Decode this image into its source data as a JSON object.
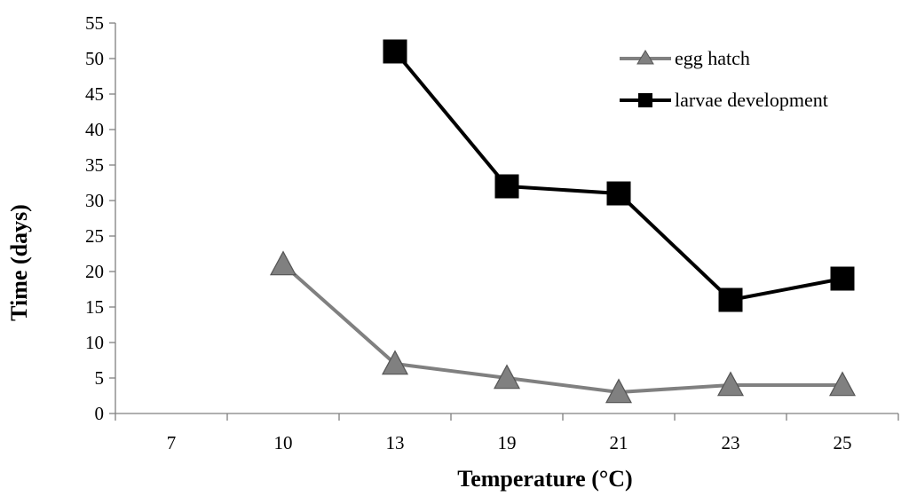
{
  "chart_data": {
    "type": "line",
    "title": "",
    "xlabel": "Temperature (°C)",
    "ylabel": "Time (days)",
    "categories": [
      "7",
      "10",
      "13",
      "19",
      "21",
      "23",
      "25"
    ],
    "ylim": [
      0,
      55
    ],
    "yticks": [
      0,
      5,
      10,
      15,
      20,
      25,
      30,
      35,
      40,
      45,
      50,
      55
    ],
    "grid": false,
    "legend_position": "top-right",
    "series": [
      {
        "name": "egg hatch",
        "marker": "triangle",
        "color": "#808080",
        "values": [
          null,
          21,
          7,
          5,
          3,
          4,
          4
        ]
      },
      {
        "name": "larvae development",
        "marker": "square",
        "color": "#000000",
        "values": [
          null,
          null,
          51,
          32,
          31,
          16,
          19
        ]
      }
    ]
  }
}
